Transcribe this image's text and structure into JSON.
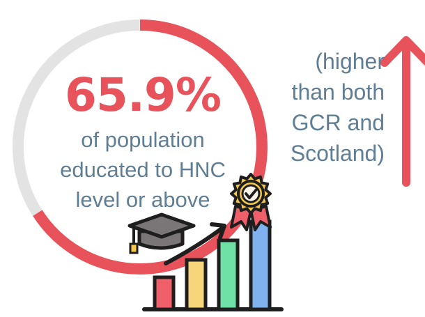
{
  "percentage": "65.9%",
  "description_lines": [
    "of population",
    "educated to HNC",
    "level or above"
  ],
  "comparison_lines": [
    "(higher",
    "than both",
    "GCR and",
    "Scotland)"
  ],
  "progress_fraction": 0.659,
  "colors": {
    "accent": "#e8525b",
    "text": "#5f7d93",
    "ring_track": "#e3e3e3"
  },
  "icons": [
    "up-arrow-icon",
    "graduation-cap-icon",
    "award-badge-icon",
    "bar-chart-icon",
    "trend-arrow-icon"
  ]
}
